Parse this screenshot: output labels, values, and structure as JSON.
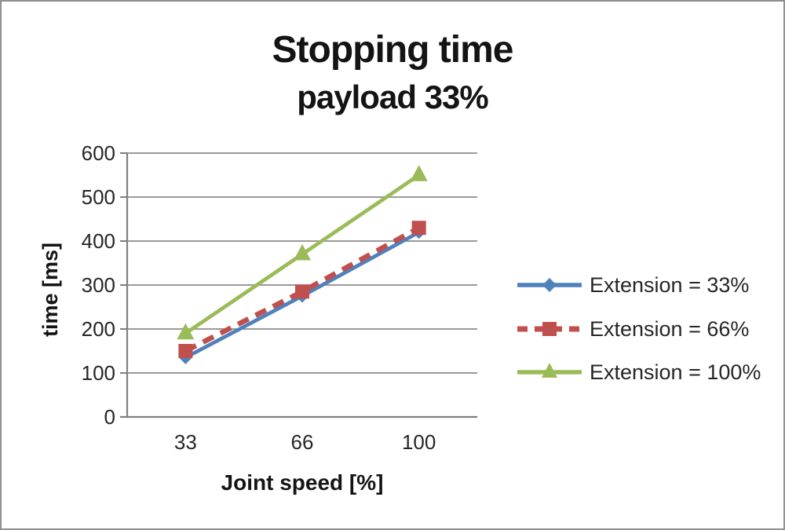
{
  "chart_data": {
    "type": "line",
    "title": "Stopping time",
    "subtitle": "payload 33%",
    "xlabel": "Joint speed [%]",
    "ylabel": "time [ms]",
    "categories": [
      "33",
      "66",
      "100"
    ],
    "y_ticks": [
      0,
      100,
      200,
      300,
      400,
      500,
      600
    ],
    "ylim": [
      0,
      600
    ],
    "grid": "horizontal-only",
    "legend_position": "right-middle",
    "series": [
      {
        "name": "Extension = 33%",
        "color": "#4F81BD",
        "marker": "diamond",
        "line_style": "solid",
        "values": [
          135,
          275,
          420
        ]
      },
      {
        "name": "Extension = 66%",
        "color": "#C0504D",
        "marker": "square",
        "line_style": "dashed",
        "values": [
          150,
          285,
          430
        ]
      },
      {
        "name": "Extension = 100%",
        "color": "#9BBB59",
        "marker": "triangle",
        "line_style": "solid",
        "values": [
          190,
          370,
          550
        ]
      }
    ],
    "colors": {
      "gridline": "#8c8c8c",
      "axis": "#808080",
      "text": "#262626",
      "background": "#ffffff",
      "frame_border": "#8f8f8f"
    }
  }
}
